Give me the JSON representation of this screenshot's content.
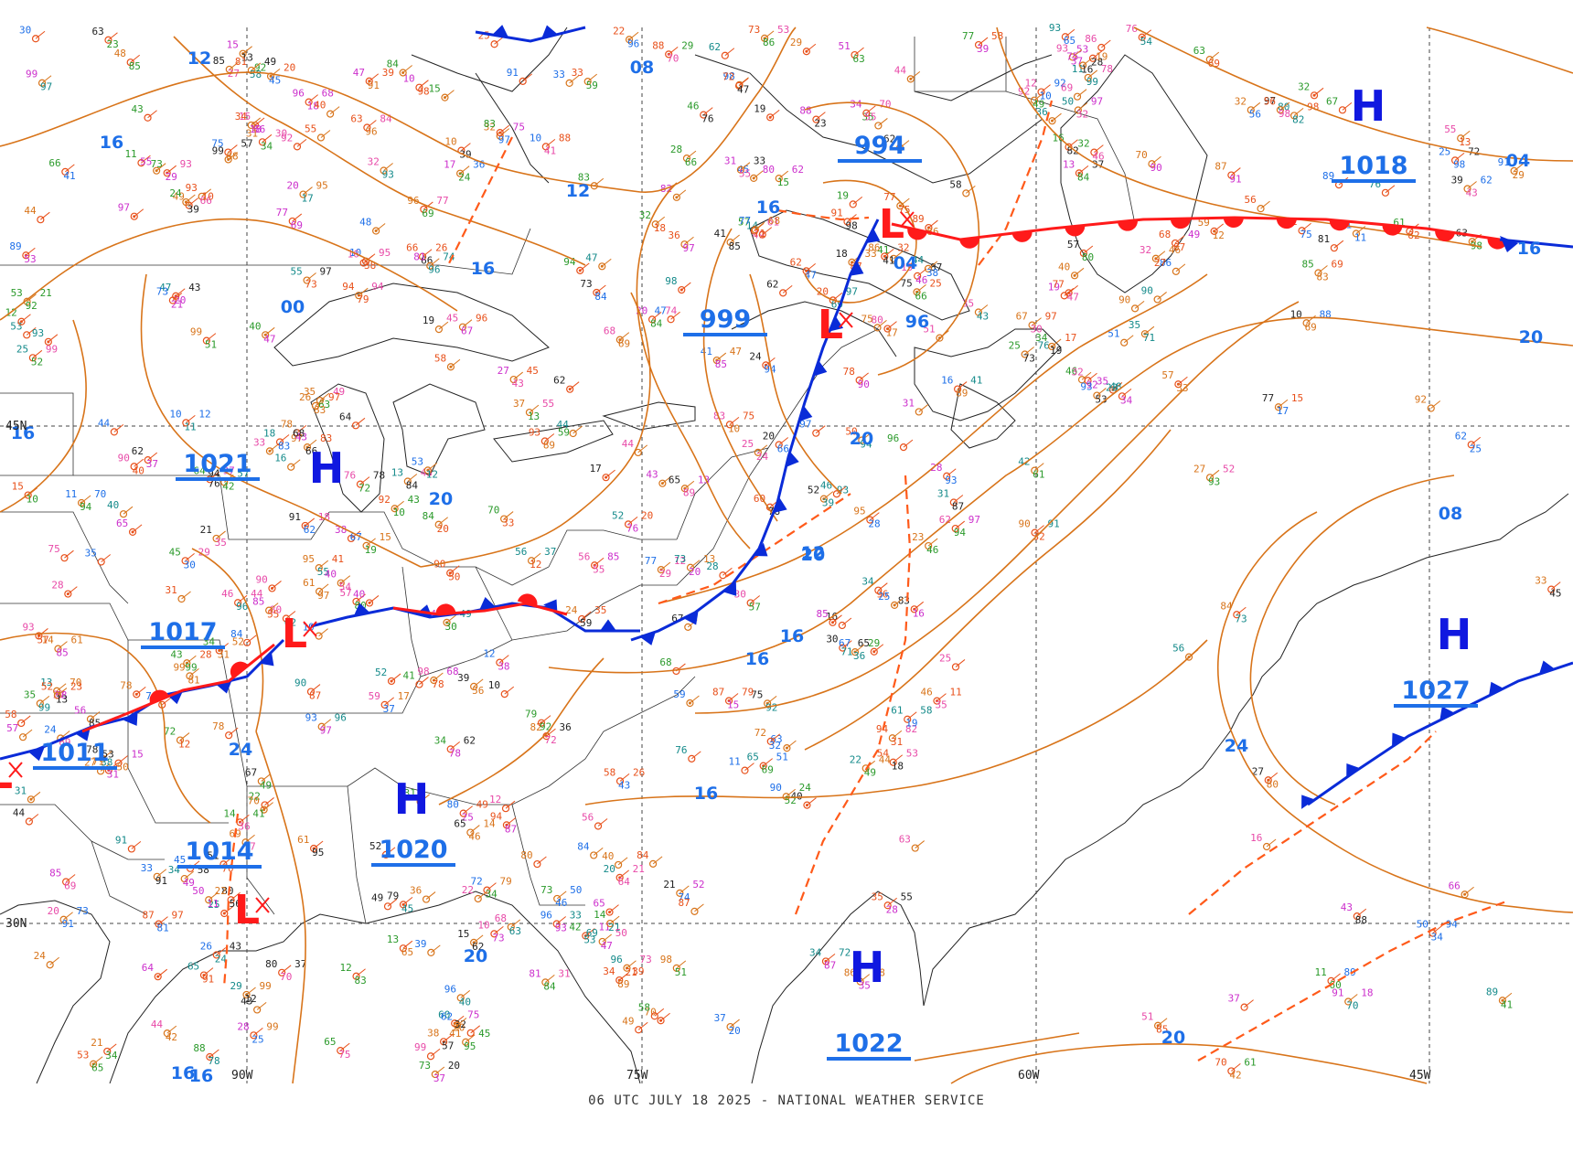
{
  "caption": "06 UTC JULY 18 2025 - NATIONAL WEATHER SERVICE",
  "colors": {
    "isobar": "#d8741a",
    "cold_front": "#0a2bd8",
    "warm_front": "#ff1a1a",
    "trough": "#ff5a1a",
    "high": "#1018e0",
    "low": "#ff1a1a",
    "isobar_label": "#1e6fe8",
    "grid": "#444444"
  },
  "grid_labels": {
    "lat": [
      "45N",
      "30N"
    ],
    "lon": [
      "90W",
      "75W",
      "60W",
      "45W"
    ]
  },
  "pressure_centers": [
    {
      "type": "H",
      "pressure": "1018"
    },
    {
      "type": "H",
      "pressure": "1021"
    },
    {
      "type": "H",
      "pressure": "1027"
    },
    {
      "type": "H",
      "pressure": "1020"
    },
    {
      "type": "H",
      "pressure": "1022"
    },
    {
      "type": "L",
      "pressure": "994"
    },
    {
      "type": "L",
      "pressure": "999"
    },
    {
      "type": "L",
      "pressure": "1017"
    },
    {
      "type": "L",
      "pressure": "1011"
    },
    {
      "type": "L",
      "pressure": "1014"
    }
  ],
  "isobar_labels": [
    "12",
    "16",
    "16",
    "08",
    "12",
    "16",
    "04",
    "96",
    "00",
    "20",
    "04",
    "16",
    "20",
    "16",
    "20",
    "16",
    "12",
    "08",
    "24",
    "24",
    "16",
    "20",
    "20",
    "20",
    "16",
    "20",
    "16",
    "16"
  ],
  "icon_names": [
    "high-pressure-symbol",
    "low-pressure-symbol",
    "cold-front-triangle",
    "warm-front-semicircle"
  ]
}
